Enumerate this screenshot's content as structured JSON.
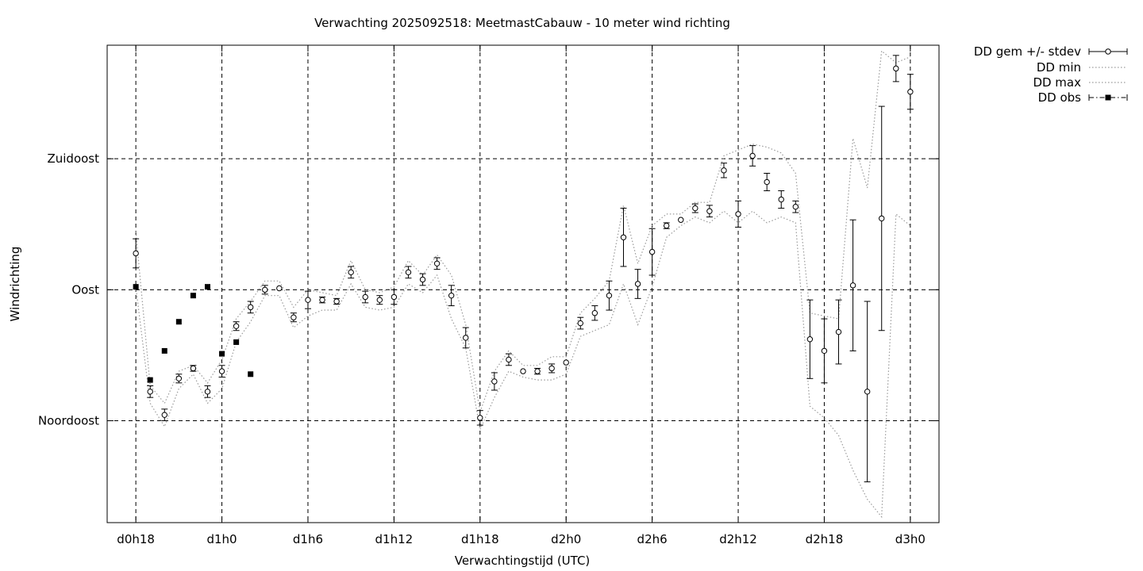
{
  "chart_data": {
    "type": "line",
    "title": "Verwachting 2025092518: MeetmastCabauw - 10 meter wind richting",
    "xlabel": "Verwachtingstijd (UTC)",
    "ylabel": "Windrichting",
    "x_ticks": [
      "d0h18",
      "d1h0",
      "d1h6",
      "d1h12",
      "d1h18",
      "d2h0",
      "d2h6",
      "d2h12",
      "d2h18",
      "d3h0"
    ],
    "x_tick_hours": [
      18,
      24,
      30,
      36,
      42,
      48,
      54,
      60,
      66,
      72
    ],
    "xlim": [
      16,
      74
    ],
    "y_ticks": [
      "Noordoost",
      "Oost",
      "Zuidoost"
    ],
    "y_tick_values": [
      45,
      90,
      135
    ],
    "ylim": [
      10,
      174
    ],
    "grid": true,
    "legend_position": "top-right outside",
    "legend": [
      "DD gem +/- stdev",
      "DD min",
      "DD max",
      "DD obs"
    ],
    "series": [
      {
        "name": "DD gem +/- stdev",
        "x": [
          18,
          19,
          20,
          21,
          22,
          23,
          24,
          25,
          26,
          27,
          28,
          29,
          30,
          31,
          32,
          33,
          34,
          35,
          36,
          37,
          38,
          39,
          40,
          41,
          42,
          43,
          44,
          45,
          46,
          47,
          48,
          49,
          50,
          51,
          52,
          53,
          54,
          55,
          56,
          57,
          58,
          59,
          60,
          61,
          62,
          63,
          64,
          65,
          66,
          67,
          68,
          69,
          70,
          71,
          72
        ],
        "y": [
          102.5,
          55,
          47,
          59.5,
          63,
          55,
          62,
          77.5,
          84,
          90,
          90.5,
          80.5,
          86.5,
          86.5,
          86,
          96,
          87.5,
          86.5,
          87.5,
          96,
          93.5,
          99,
          88,
          73.5,
          46,
          58.5,
          66,
          62,
          62,
          63,
          65,
          78.5,
          82,
          88,
          108,
          92,
          103,
          112,
          114,
          118,
          117,
          131,
          116,
          136,
          127,
          121,
          118.5,
          73,
          69,
          75.5,
          91.5,
          55,
          114.5,
          166,
          158
        ],
        "err": [
          5,
          2,
          2,
          1.5,
          1,
          2,
          2,
          1.5,
          2,
          1.5,
          0.5,
          1.5,
          3,
          1,
          1,
          2,
          2,
          1.5,
          2.5,
          2,
          2,
          2,
          3.5,
          3.5,
          2.5,
          3,
          2,
          0.5,
          1,
          1.5,
          0.5,
          2,
          2.5,
          5,
          10,
          5,
          8,
          1,
          0.5,
          1.5,
          2,
          2.5,
          4.5,
          3.5,
          3,
          3,
          2,
          13.5,
          11,
          11,
          22.5,
          31,
          38.5,
          4.5,
          6
        ]
      },
      {
        "name": "DD min",
        "x": [
          18,
          19,
          20,
          21,
          22,
          23,
          24,
          25,
          26,
          27,
          28,
          29,
          30,
          31,
          32,
          33,
          34,
          35,
          36,
          37,
          38,
          39,
          40,
          41,
          42,
          43,
          44,
          45,
          46,
          47,
          48,
          49,
          50,
          51,
          52,
          53,
          54,
          55,
          56,
          57,
          58,
          59,
          60,
          61,
          62,
          63,
          64,
          65,
          66,
          67,
          68,
          69,
          70,
          71,
          72
        ],
        "y": [
          91,
          51,
          43,
          56,
          61,
          51,
          56,
          72,
          79,
          88,
          88,
          77,
          81,
          83,
          83,
          92,
          84,
          83,
          84,
          92,
          89,
          95,
          80,
          70,
          42,
          53,
          62,
          60,
          59,
          59,
          61,
          74,
          76,
          78,
          92,
          78,
          91,
          108,
          112,
          115,
          113,
          117,
          113,
          117,
          113,
          115,
          113,
          50,
          46,
          40,
          28,
          18,
          12,
          116,
          112
        ]
      },
      {
        "name": "DD max",
        "x": [
          18,
          19,
          20,
          21,
          22,
          23,
          24,
          25,
          26,
          27,
          28,
          29,
          30,
          31,
          32,
          33,
          34,
          35,
          36,
          37,
          38,
          39,
          40,
          41,
          42,
          43,
          44,
          45,
          46,
          47,
          48,
          49,
          50,
          51,
          52,
          53,
          54,
          55,
          56,
          57,
          58,
          59,
          60,
          61,
          62,
          63,
          64,
          65,
          66,
          67,
          68,
          69,
          70,
          71,
          72
        ],
        "y": [
          110,
          57,
          51,
          62,
          64,
          58,
          66,
          80,
          86,
          93,
          93,
          84,
          90,
          89,
          88,
          100,
          90,
          89,
          91,
          100,
          95,
          102,
          95,
          78,
          48,
          62,
          69,
          64,
          64,
          67,
          67,
          82,
          87,
          93,
          119,
          99,
          112,
          116,
          116,
          120,
          120,
          136,
          138,
          140,
          139,
          137,
          130,
          82,
          81,
          80,
          142,
          125,
          172,
          168,
          170
        ]
      },
      {
        "name": "DD obs",
        "x": [
          18,
          19,
          20,
          21,
          22,
          23,
          24,
          25,
          26
        ],
        "y": [
          91,
          59,
          69,
          79,
          88,
          91,
          68,
          72,
          61
        ]
      }
    ]
  }
}
